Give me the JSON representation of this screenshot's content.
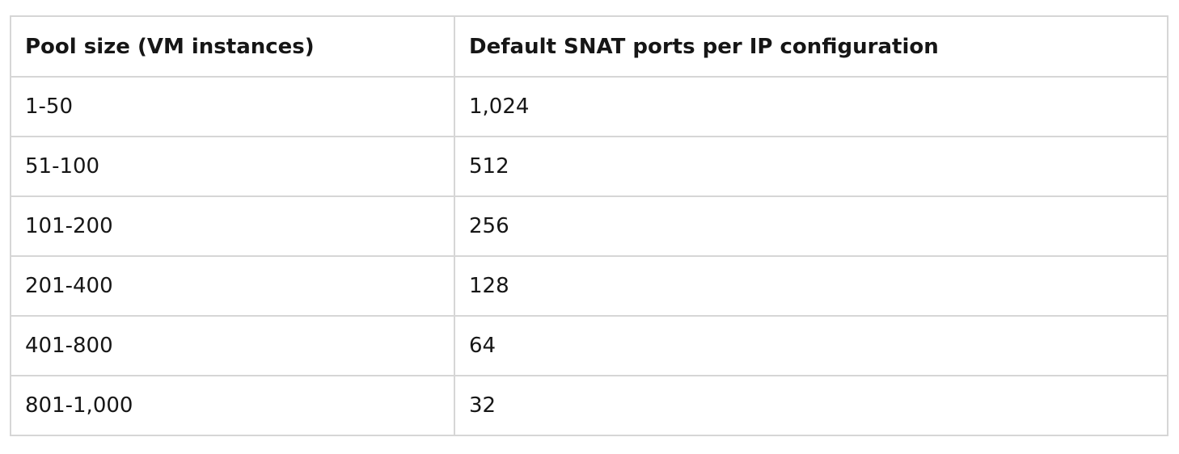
{
  "table": {
    "headers": [
      "Pool size (VM instances)",
      "Default SNAT ports per IP configuration"
    ],
    "rows": [
      [
        "1-50",
        "1,024"
      ],
      [
        "51-100",
        "512"
      ],
      [
        "101-200",
        "256"
      ],
      [
        "201-400",
        "128"
      ],
      [
        "401-800",
        "64"
      ],
      [
        "801-1,000",
        "32"
      ]
    ]
  }
}
